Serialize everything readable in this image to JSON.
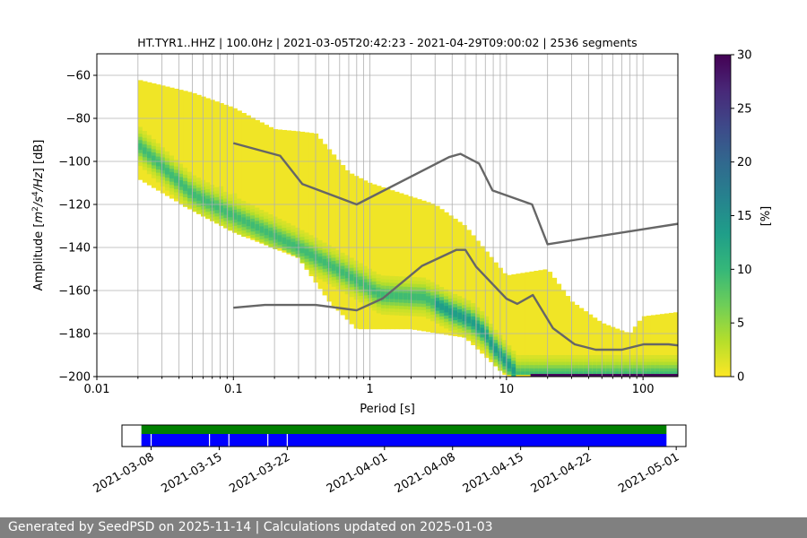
{
  "chart_data": [
    {
      "type": "heatmap",
      "title": "HT.TYR1..HHZ | 100.0Hz | 2021-03-05T20:42:23 - 2021-04-29T09:00:02 | 2536 segments",
      "xlabel": "Period [s]",
      "ylabel_parts": [
        "Amplitude [",
        "m",
        "2",
        "/",
        "s",
        "4",
        "/",
        "Hz",
        "] [dB]"
      ],
      "x_scale": "log",
      "xlim": [
        0.01,
        180
      ],
      "ylim": [
        -200,
        -50
      ],
      "x_ticks": [
        {
          "v": 0.01,
          "label": "0.01"
        },
        {
          "v": 0.1,
          "label": "0.1"
        },
        {
          "v": 1,
          "label": "1"
        },
        {
          "v": 10,
          "label": "10"
        },
        {
          "v": 100,
          "label": "100"
        }
      ],
      "y_ticks": [
        {
          "v": -60,
          "label": "−60"
        },
        {
          "v": -80,
          "label": "−80"
        },
        {
          "v": -100,
          "label": "−100"
        },
        {
          "v": -120,
          "label": "−120"
        },
        {
          "v": -140,
          "label": "−140"
        },
        {
          "v": -160,
          "label": "−160"
        },
        {
          "v": -180,
          "label": "−180"
        },
        {
          "v": -200,
          "label": "−200"
        }
      ],
      "grid": true,
      "grid_periods": [
        0.02,
        0.03,
        0.04,
        0.05,
        0.06,
        0.07,
        0.08,
        0.09,
        0.1,
        0.2,
        0.3,
        0.4,
        0.5,
        0.6,
        0.7,
        0.8,
        0.9,
        1,
        2,
        3,
        4,
        5,
        6,
        7,
        8,
        9,
        10,
        20,
        30,
        40,
        50,
        60,
        70,
        80,
        90,
        100
      ],
      "psd_density": {
        "period_range": [
          0.02,
          180
        ],
        "ridge": [
          [
            0.02,
            -92
          ],
          [
            0.05,
            -115
          ],
          [
            0.1,
            -125
          ],
          [
            0.3,
            -140
          ],
          [
            0.7,
            -153
          ],
          [
            1.2,
            -162
          ],
          [
            2.5,
            -163
          ],
          [
            4,
            -170
          ],
          [
            5.5,
            -174
          ],
          [
            7,
            -180
          ],
          [
            8,
            -186
          ],
          [
            10,
            -193
          ],
          [
            12,
            -199
          ]
        ],
        "upper_edge": [
          [
            0.02,
            -62
          ],
          [
            0.05,
            -68
          ],
          [
            0.1,
            -75
          ],
          [
            0.2,
            -85
          ],
          [
            0.3,
            -86
          ],
          [
            0.4,
            -87
          ],
          [
            0.7,
            -105
          ],
          [
            1,
            -110
          ],
          [
            3,
            -120
          ],
          [
            5,
            -130
          ],
          [
            10,
            -153
          ],
          [
            20,
            -150
          ],
          [
            30,
            -165
          ],
          [
            50,
            -175
          ],
          [
            80,
            -180
          ],
          [
            100,
            -172
          ],
          [
            180,
            -170
          ]
        ],
        "lower_edge": [
          [
            0.02,
            -108
          ],
          [
            0.05,
            -123
          ],
          [
            0.1,
            -133
          ],
          [
            0.3,
            -145
          ],
          [
            0.5,
            -165
          ],
          [
            0.8,
            -178
          ],
          [
            2,
            -178
          ],
          [
            5,
            -182
          ],
          [
            10,
            -200
          ],
          [
            180,
            -200
          ]
        ],
        "high_density_periods": [
          15,
          180
        ]
      },
      "nhnm": [
        [
          0.1,
          -91.5
        ],
        [
          0.22,
          -97.4
        ],
        [
          0.32,
          -110.5
        ],
        [
          0.8,
          -120
        ],
        [
          3.8,
          -98
        ],
        [
          4.6,
          -96.5
        ],
        [
          6.3,
          -101
        ],
        [
          7.9,
          -113.5
        ],
        [
          15.4,
          -120
        ],
        [
          20,
          -138.5
        ],
        [
          180,
          -129
        ]
      ],
      "nlnm": [
        [
          0.1,
          -168
        ],
        [
          0.17,
          -166.7
        ],
        [
          0.4,
          -166.7
        ],
        [
          0.8,
          -169.2
        ],
        [
          1.24,
          -163.7
        ],
        [
          2.4,
          -148.6
        ],
        [
          4.3,
          -141.1
        ],
        [
          5,
          -141.1
        ],
        [
          6,
          -149
        ],
        [
          10,
          -163.8
        ],
        [
          12,
          -166.2
        ],
        [
          15.6,
          -162.1
        ],
        [
          21.9,
          -177.5
        ],
        [
          31.6,
          -185
        ],
        [
          45,
          -187.5
        ],
        [
          70,
          -187.5
        ],
        [
          101,
          -185
        ],
        [
          154,
          -185
        ],
        [
          180,
          -185.5
        ]
      ],
      "colorbar": {
        "label": "[%]",
        "range": [
          0,
          30
        ],
        "ticks": [
          {
            "v": 0,
            "label": "0"
          },
          {
            "v": 5,
            "label": "5"
          },
          {
            "v": 10,
            "label": "10"
          },
          {
            "v": 15,
            "label": "15"
          },
          {
            "v": 20,
            "label": "20"
          },
          {
            "v": 25,
            "label": "25"
          },
          {
            "v": 30,
            "label": "30"
          }
        ],
        "colors": [
          "#fde725",
          "#b5de2b",
          "#6ece58",
          "#35b779",
          "#1f9e89",
          "#26828e",
          "#31688e",
          "#3e4989",
          "#482878",
          "#440154"
        ]
      },
      "line_color": "#666666"
    },
    {
      "type": "timeline",
      "date_range": [
        "2021-03-05",
        "2021-05-02"
      ],
      "data_range": [
        "2021-03-07",
        "2021-04-30"
      ],
      "gap_dates": [
        "2021-03-08",
        "2021-03-14",
        "2021-03-16",
        "2021-03-20",
        "2021-03-22"
      ],
      "x_ticks": [
        {
          "v": "2021-03-08",
          "label": "2021-03-08"
        },
        {
          "v": "2021-03-15",
          "label": "2021-03-15"
        },
        {
          "v": "2021-03-22",
          "label": "2021-03-22"
        },
        {
          "v": "2021-04-01",
          "label": "2021-04-01"
        },
        {
          "v": "2021-04-08",
          "label": "2021-04-08"
        },
        {
          "v": "2021-04-15",
          "label": "2021-04-15"
        },
        {
          "v": "2021-04-22",
          "label": "2021-04-22"
        },
        {
          "v": "2021-05-01",
          "label": "2021-05-01"
        }
      ],
      "colors": {
        "availability": "#008000",
        "segments": "#0000ff"
      }
    }
  ],
  "footer": {
    "text": "Generated by SeedPSD on 2025-11-14 | Calculations updated on 2025-01-03"
  }
}
